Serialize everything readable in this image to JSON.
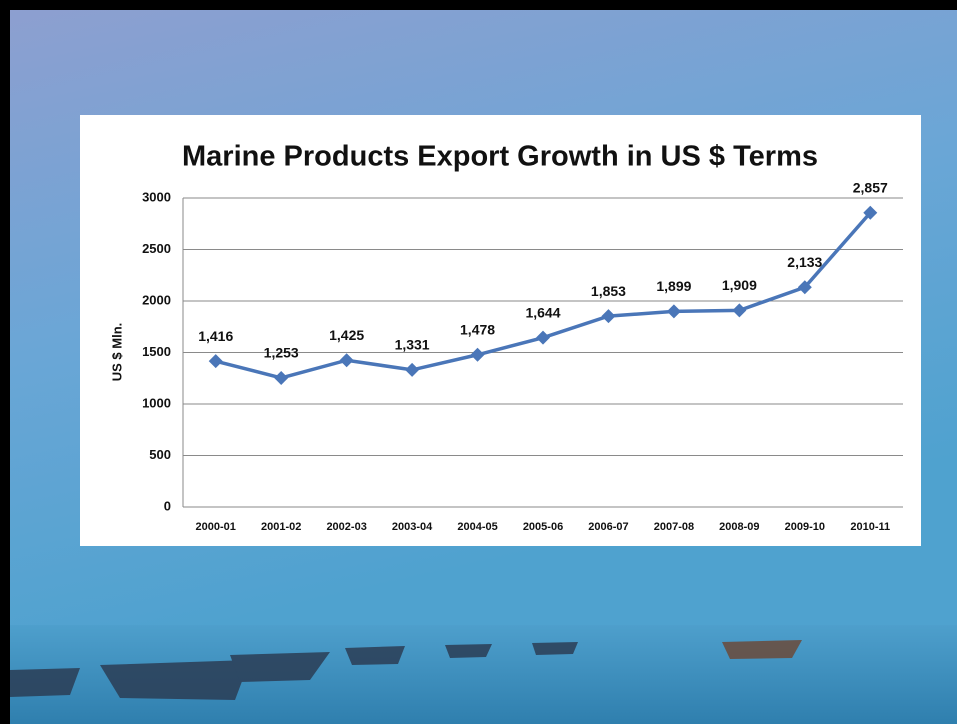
{
  "chart_data": {
    "type": "line",
    "title": "Marine Products Export Growth in US $ Terms",
    "y_label": "US $ Mln.",
    "categories": [
      "2000-01",
      "2001-02",
      "2002-03",
      "2003-04",
      "2004-05",
      "2005-06",
      "2006-07",
      "2007-08",
      "2008-09",
      "2009-10",
      "2010-11"
    ],
    "values": [
      1416,
      1253,
      1425,
      1331,
      1478,
      1644,
      1853,
      1899,
      1909,
      2133,
      2857
    ],
    "value_labels": [
      "1,416",
      "1,253",
      "1,425",
      "1,331",
      "1,478",
      "1,644",
      "1,853",
      "1,899",
      "1,909",
      "2,133",
      "2,857"
    ],
    "color": "#4a76b8",
    "ylim": [
      0,
      3000
    ],
    "yticks": [
      0,
      500,
      1000,
      1500,
      2000,
      2500,
      3000
    ],
    "grid": true
  }
}
